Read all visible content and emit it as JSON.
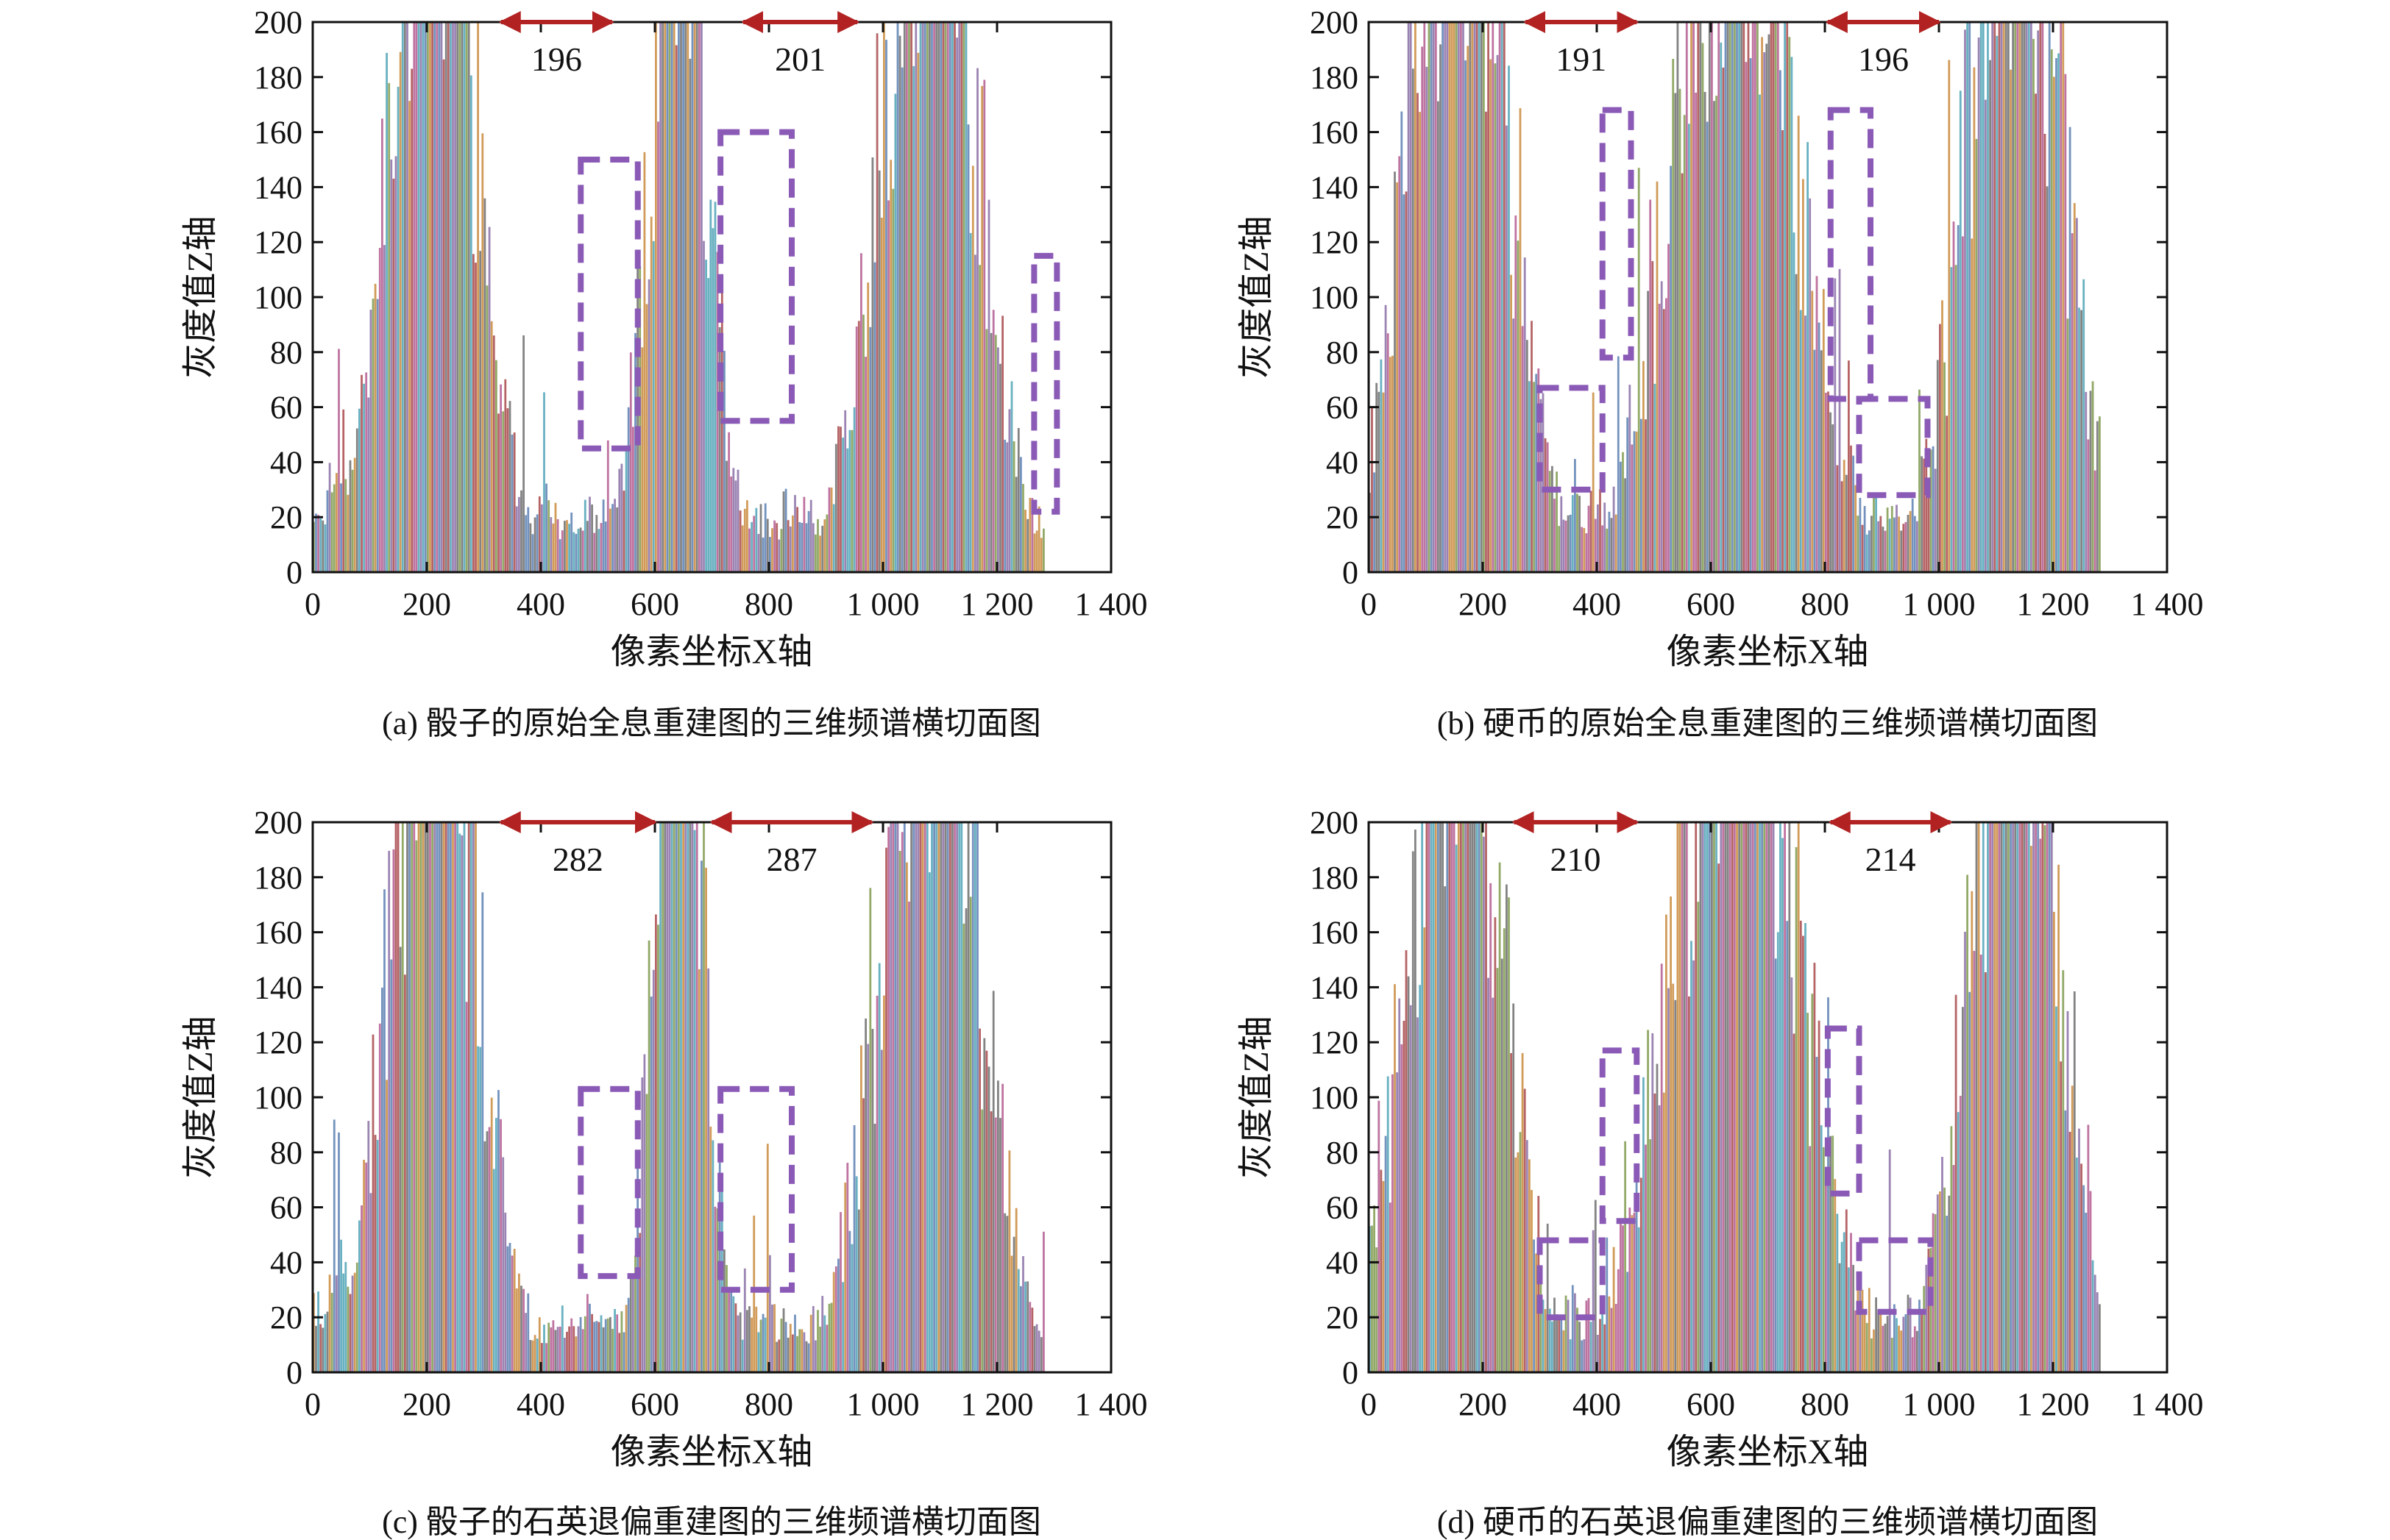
{
  "figure": {
    "panels": [
      {
        "caption": "(a) 骰子的原始全息重建图的三维频谱横切面图",
        "xlabel": "像素坐标X轴",
        "ylabel": "灰度值Z轴",
        "measures": [
          {
            "x_start": 330,
            "x_end": 525,
            "label": "196"
          },
          {
            "x_start": 755,
            "x_end": 955,
            "label": "201"
          }
        ],
        "boxes": [
          {
            "x_start": 470,
            "x_end": 570,
            "y_low": 45,
            "y_high": 150
          },
          {
            "x_start": 715,
            "x_end": 840,
            "y_low": 55,
            "y_high": 160
          },
          {
            "x_start": 1265,
            "x_end": 1305,
            "y_low": 22,
            "y_high": 115
          }
        ],
        "chart_data": {
          "type": "bar",
          "description_lobes": [
            {
              "center": 210,
              "width": 110,
              "peak": 200
            },
            {
              "center": 640,
              "width": 75,
              "peak": 200
            },
            {
              "center": 1080,
              "width": 125,
              "peak": 200
            }
          ],
          "valleys": [
            {
              "x": 420,
              "level": 22
            },
            {
              "x": 860,
              "level": 22
            }
          ],
          "x_end": 1280,
          "xlim": [
            0,
            1400
          ],
          "ylim": [
            0,
            200
          ],
          "xticks": [
            "0",
            "200",
            "400",
            "600",
            "800",
            "1 000",
            "1 200",
            "1 400"
          ],
          "yticks": [
            "0",
            "20",
            "40",
            "60",
            "80",
            "100",
            "120",
            "140",
            "160",
            "180",
            "200"
          ]
        }
      },
      {
        "caption": "(b) 硬币的原始全息重建图的三维频谱横切面图",
        "xlabel": "像素坐标X轴",
        "ylabel": "灰度值Z轴",
        "measures": [
          {
            "x_start": 275,
            "x_end": 470,
            "label": "191"
          },
          {
            "x_start": 805,
            "x_end": 1000,
            "label": "196"
          }
        ],
        "boxes": [
          {
            "x_start": 300,
            "x_end": 410,
            "y_low": 30,
            "y_high": 67
          },
          {
            "x_start": 410,
            "x_end": 460,
            "y_low": 78,
            "y_high": 168
          },
          {
            "x_start": 810,
            "x_end": 880,
            "y_low": 63,
            "y_high": 168
          },
          {
            "x_start": 860,
            "x_end": 980,
            "y_low": 28,
            "y_high": 63
          }
        ],
        "chart_data": {
          "type": "bar",
          "description_lobes": [
            {
              "center": 155,
              "width": 125,
              "peak": 200
            },
            {
              "center": 640,
              "width": 155,
              "peak": 200
            },
            {
              "center": 1130,
              "width": 120,
              "peak": 200
            }
          ],
          "valleys": [
            {
              "x": 360,
              "level": 30
            },
            {
              "x": 910,
              "level": 30
            }
          ],
          "x_end": 1280,
          "xlim": [
            0,
            1400
          ],
          "ylim": [
            0,
            200
          ],
          "xticks": [
            "0",
            "200",
            "400",
            "600",
            "800",
            "1 000",
            "1 200",
            "1 400"
          ],
          "yticks": [
            "0",
            "20",
            "40",
            "60",
            "80",
            "100",
            "120",
            "140",
            "160",
            "180",
            "200"
          ]
        }
      },
      {
        "caption": "(c) 骰子的石英退偏重建图的三维频谱横切面图",
        "xlabel": "像素坐标X轴",
        "ylabel": "灰度值Z轴",
        "measures": [
          {
            "x_start": 330,
            "x_end": 600,
            "label": "282"
          },
          {
            "x_start": 700,
            "x_end": 980,
            "label": "287"
          }
        ],
        "boxes": [
          {
            "x_start": 470,
            "x_end": 570,
            "y_low": 35,
            "y_high": 103
          },
          {
            "x_start": 715,
            "x_end": 840,
            "y_low": 30,
            "y_high": 103
          }
        ],
        "chart_data": {
          "type": "bar",
          "description_lobes": [
            {
              "center": 210,
              "width": 110,
              "peak": 200
            },
            {
              "center": 640,
              "width": 65,
              "peak": 200
            },
            {
              "center": 1080,
              "width": 125,
              "peak": 200
            }
          ],
          "valleys": [
            {
              "x": 420,
              "level": 14
            },
            {
              "x": 860,
              "level": 14
            }
          ],
          "x_end": 1280,
          "xlim": [
            0,
            1400
          ],
          "ylim": [
            0,
            200
          ],
          "xticks": [
            "0",
            "200",
            "400",
            "600",
            "800",
            "1 000",
            "1 200",
            "1 400"
          ],
          "yticks": [
            "0",
            "20",
            "40",
            "60",
            "80",
            "100",
            "120",
            "140",
            "160",
            "180",
            "200"
          ]
        }
      },
      {
        "caption": "(d) 硬币的石英退偏重建图的三维频谱横切面图",
        "xlabel": "像素坐标X轴",
        "ylabel": "灰度值Z轴",
        "measures": [
          {
            "x_start": 255,
            "x_end": 470,
            "label": "210"
          },
          {
            "x_start": 810,
            "x_end": 1020,
            "label": "214"
          }
        ],
        "boxes": [
          {
            "x_start": 300,
            "x_end": 410,
            "y_low": 20,
            "y_high": 48
          },
          {
            "x_start": 410,
            "x_end": 470,
            "y_low": 55,
            "y_high": 117
          },
          {
            "x_start": 805,
            "x_end": 860,
            "y_low": 65,
            "y_high": 125
          },
          {
            "x_start": 860,
            "x_end": 985,
            "y_low": 22,
            "y_high": 48
          }
        ],
        "chart_data": {
          "type": "bar",
          "description_lobes": [
            {
              "center": 150,
              "width": 120,
              "peak": 200
            },
            {
              "center": 640,
              "width": 160,
              "peak": 200
            },
            {
              "center": 1130,
              "width": 115,
              "peak": 200
            }
          ],
          "valleys": [
            {
              "x": 360,
              "level": 22
            },
            {
              "x": 920,
              "level": 22
            }
          ],
          "x_end": 1280,
          "xlim": [
            0,
            1400
          ],
          "ylim": [
            0,
            200
          ],
          "xticks": [
            "0",
            "200",
            "400",
            "600",
            "800",
            "1 000",
            "1 200",
            "1 400"
          ],
          "yticks": [
            "0",
            "20",
            "40",
            "60",
            "80",
            "100",
            "120",
            "140",
            "160",
            "180",
            "200"
          ]
        }
      }
    ],
    "colors": {
      "bars": [
        "#a8484a",
        "#5a7fb2",
        "#7f9a4d",
        "#8a6ea6",
        "#c98a3c",
        "#4fa3b6",
        "#b35a8f",
        "#6d6d6d"
      ],
      "measure_arrow": "#b22222",
      "box": "#8a5ab6",
      "axis": "#111111"
    }
  }
}
